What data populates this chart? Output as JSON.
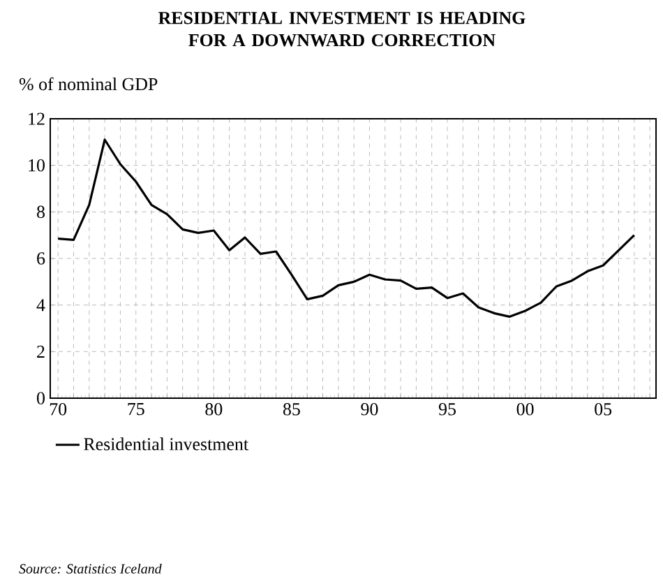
{
  "chart_data": {
    "type": "line",
    "title": "RESIDENTIAL INVESTMENT IS HEADING FOR A DOWNWARD CORRECTION",
    "ylabel": "% of nominal GDP",
    "annotations": [
      "Source: Statistics Iceland"
    ],
    "x": [
      1970,
      1971,
      1972,
      1973,
      1974,
      1975,
      1976,
      1977,
      1978,
      1979,
      1980,
      1981,
      1982,
      1983,
      1984,
      1985,
      1986,
      1987,
      1988,
      1989,
      1990,
      1991,
      1992,
      1993,
      1994,
      1995,
      1996,
      1997,
      1998,
      1999,
      2000,
      2001,
      2002,
      2003,
      2004,
      2005,
      2006,
      2007
    ],
    "series": [
      {
        "name": "Residential investment",
        "color": "#000000",
        "values": [
          6.85,
          6.8,
          8.3,
          11.1,
          10.05,
          9.3,
          8.3,
          7.9,
          7.25,
          7.1,
          7.2,
          6.35,
          6.9,
          6.2,
          6.3,
          5.3,
          4.25,
          4.4,
          4.85,
          5.0,
          5.3,
          5.1,
          5.05,
          4.7,
          4.75,
          4.3,
          4.5,
          3.9,
          3.65,
          3.5,
          3.75,
          4.1,
          4.8,
          5.05,
          5.45,
          5.7,
          6.35,
          7.0
        ]
      }
    ],
    "xlim": [
      1969.5,
      2008.4
    ],
    "xticks": [
      {
        "value": 1970,
        "label": "70"
      },
      {
        "value": 1971,
        "label": null
      },
      {
        "value": 1972,
        "label": null
      },
      {
        "value": 1973,
        "label": null
      },
      {
        "value": 1974,
        "label": null
      },
      {
        "value": 1975,
        "label": "75"
      },
      {
        "value": 1976,
        "label": null
      },
      {
        "value": 1977,
        "label": null
      },
      {
        "value": 1978,
        "label": null
      },
      {
        "value": 1979,
        "label": null
      },
      {
        "value": 1980,
        "label": "80"
      },
      {
        "value": 1981,
        "label": null
      },
      {
        "value": 1982,
        "label": null
      },
      {
        "value": 1983,
        "label": null
      },
      {
        "value": 1984,
        "label": null
      },
      {
        "value": 1985,
        "label": "85"
      },
      {
        "value": 1986,
        "label": null
      },
      {
        "value": 1987,
        "label": null
      },
      {
        "value": 1988,
        "label": null
      },
      {
        "value": 1989,
        "label": null
      },
      {
        "value": 1990,
        "label": "90"
      },
      {
        "value": 1991,
        "label": null
      },
      {
        "value": 1992,
        "label": null
      },
      {
        "value": 1993,
        "label": null
      },
      {
        "value": 1994,
        "label": null
      },
      {
        "value": 1995,
        "label": "95"
      },
      {
        "value": 1996,
        "label": null
      },
      {
        "value": 1997,
        "label": null
      },
      {
        "value": 1998,
        "label": null
      },
      {
        "value": 1999,
        "label": null
      },
      {
        "value": 2000,
        "label": "00"
      },
      {
        "value": 2001,
        "label": null
      },
      {
        "value": 2002,
        "label": null
      },
      {
        "value": 2003,
        "label": null
      },
      {
        "value": 2004,
        "label": null
      },
      {
        "value": 2005,
        "label": "05"
      },
      {
        "value": 2006,
        "label": null
      },
      {
        "value": 2007,
        "label": null
      },
      {
        "value": 2008,
        "label": null
      }
    ],
    "ylim": [
      0,
      12
    ],
    "yticks": [
      0,
      2,
      4,
      6,
      8,
      10,
      12
    ],
    "grid": true,
    "legend": "bottom",
    "marker": "none",
    "line_style": "solid"
  }
}
